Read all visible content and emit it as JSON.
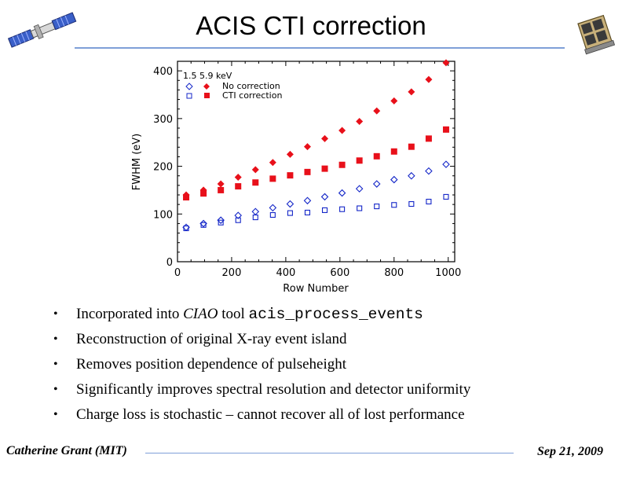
{
  "slide": {
    "title": "ACIS CTI correction"
  },
  "chart_data": {
    "type": "scatter",
    "title": "",
    "xlabel": "Row Number",
    "ylabel": "FWHM (eV)",
    "xlim": [
      0,
      1024
    ],
    "ylim": [
      0,
      420
    ],
    "xticks": [
      "0",
      "200",
      "400",
      "600",
      "800",
      "1000"
    ],
    "yticks": [
      "0",
      "100",
      "200",
      "300",
      "400"
    ],
    "legend": {
      "header": "1.5 5.9  keV",
      "entries": [
        "No correction",
        "CTI correction"
      ],
      "position": "top-left"
    },
    "x": [
      32,
      96,
      160,
      224,
      288,
      352,
      416,
      480,
      544,
      608,
      672,
      736,
      800,
      864,
      928,
      992
    ],
    "series": [
      {
        "name": "No correction 5.9 keV",
        "marker": "filled-diamond",
        "color": "#e8101a",
        "values": [
          140,
          150,
          163,
          177,
          193,
          208,
          225,
          241,
          258,
          275,
          294,
          316,
          337,
          356,
          382,
          417
        ]
      },
      {
        "name": "CTI correction 5.9 keV",
        "marker": "filled-square",
        "color": "#e8101a",
        "values": [
          135,
          143,
          150,
          158,
          166,
          174,
          181,
          188,
          195,
          203,
          212,
          221,
          231,
          241,
          258,
          277
        ]
      },
      {
        "name": "No correction 1.5 keV",
        "marker": "open-diamond",
        "color": "#1426c8",
        "values": [
          72,
          80,
          87,
          97,
          105,
          113,
          121,
          128,
          136,
          144,
          153,
          163,
          172,
          180,
          190,
          204
        ]
      },
      {
        "name": "CTI correction 1.5 keV",
        "marker": "open-square",
        "color": "#1426c8",
        "values": [
          70,
          77,
          82,
          87,
          93,
          98,
          102,
          103,
          108,
          110,
          112,
          116,
          119,
          121,
          126,
          136
        ]
      }
    ]
  },
  "bullets": {
    "item1": {
      "pre": "Incorporated into ",
      "em": "CIAO",
      "mid": " tool ",
      "code": "acis_process_events"
    },
    "item2": "Reconstruction of original X-ray event island",
    "item3": "Removes position dependence of pulseheight",
    "item4": "Significantly improves spectral resolution and detector uniformity",
    "item5": "Charge loss is stochastic – cannot recover all of lost performance",
    "bullet_glyph": "•"
  },
  "footer": {
    "author": "Catherine Grant (MIT)",
    "date": "Sep 21, 2009"
  }
}
